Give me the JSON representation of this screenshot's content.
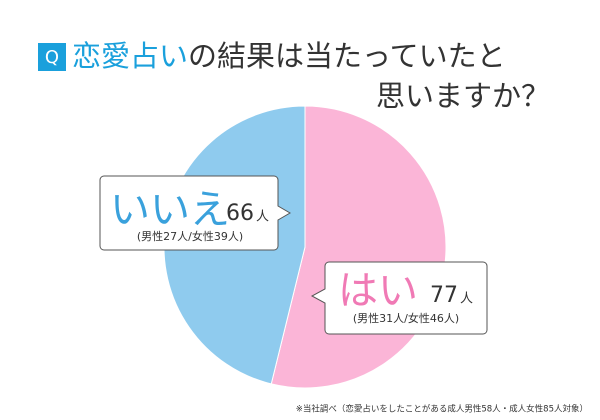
{
  "chart_data": {
    "type": "pie",
    "title": {
      "badge": "Q",
      "highlight": "恋愛占い",
      "line1": "の結果は当たっていたと",
      "line2": "思いますか？"
    },
    "categories": [
      "はい",
      "いいえ"
    ],
    "values": [
      77,
      66
    ],
    "unit": "人",
    "breakdowns": [
      "(男性31人/女性46人)",
      "(男性27人/女性39人)"
    ],
    "colors": [
      "#fbb5d7",
      "#8fcbee"
    ],
    "label_colors": [
      "#f07ab5",
      "#3aa1dc"
    ],
    "footnote": "※当社調べ（恋愛占いをしたことがある成人男性58人・成人女性85人対象）"
  }
}
